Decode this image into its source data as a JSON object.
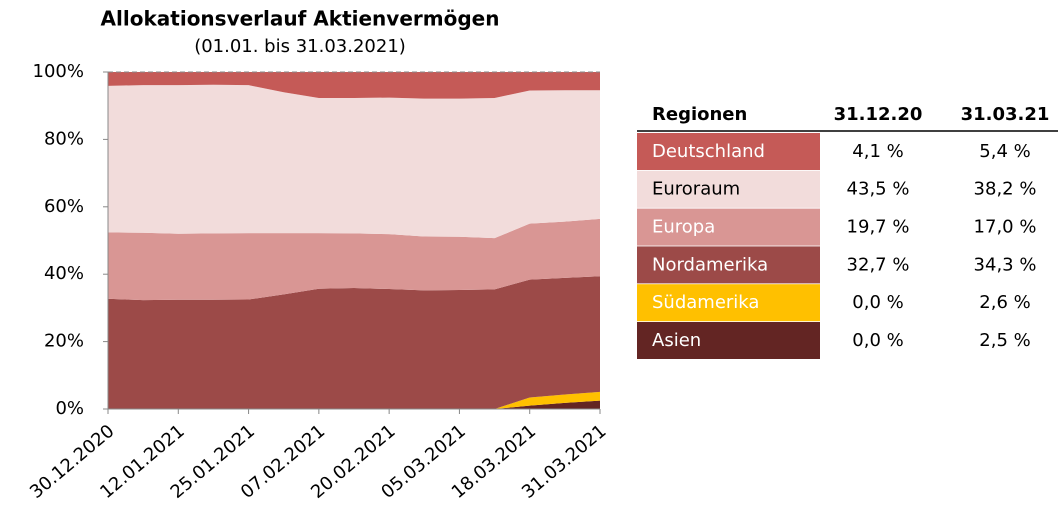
{
  "chart_data": {
    "type": "stacked_area",
    "title": "Allokationsverlauf Aktienvermögen",
    "subtitle": "(01.01. bis 31.03.2021)",
    "categories": [
      "30.12.2020",
      null,
      "12.01.2021",
      null,
      "25.01.2021",
      null,
      "07.02.2021",
      null,
      "20.02.2021",
      null,
      "05.03.2021",
      null,
      "18.03.2021",
      null,
      "31.03.2021"
    ],
    "series": [
      {
        "name": "Asien",
        "color": "#632523",
        "values": [
          0,
          0,
          0,
          0,
          0,
          0,
          0,
          0,
          0,
          0,
          0,
          0,
          1.0,
          1.8,
          2.5
        ]
      },
      {
        "name": "Südamerika",
        "color": "#ffc000",
        "values": [
          0,
          0,
          0,
          0,
          0,
          0,
          0,
          0,
          0,
          0,
          0,
          0,
          2.4,
          2.5,
          2.6
        ]
      },
      {
        "name": "Nordamerika",
        "color": "#9c4a48",
        "values": [
          32.7,
          32.3,
          32.4,
          32.4,
          32.5,
          34.0,
          35.7,
          35.9,
          35.6,
          35.2,
          35.3,
          35.5,
          35.0,
          34.6,
          34.3
        ]
      },
      {
        "name": "Europa",
        "color": "#d99694",
        "values": [
          19.7,
          20.0,
          19.6,
          19.7,
          19.7,
          18.2,
          16.5,
          16.2,
          16.3,
          16.0,
          15.8,
          15.2,
          16.6,
          16.7,
          17.0
        ]
      },
      {
        "name": "Euroraum",
        "color": "#f2dcdb",
        "values": [
          43.5,
          43.8,
          44.1,
          44.1,
          43.9,
          41.8,
          40.1,
          40.2,
          40.5,
          40.9,
          41.0,
          41.6,
          39.5,
          39.0,
          38.2
        ]
      },
      {
        "name": "Deutschland",
        "color": "#c55a57",
        "values": [
          4.1,
          3.9,
          3.9,
          3.8,
          3.9,
          6.0,
          7.7,
          7.7,
          7.6,
          7.9,
          7.9,
          7.7,
          5.5,
          5.4,
          5.4
        ]
      }
    ],
    "ylim": [
      0,
      100
    ],
    "yticks": [
      {
        "value": 0,
        "label": "0%"
      },
      {
        "value": 20,
        "label": "20%"
      },
      {
        "value": 40,
        "label": "40%"
      },
      {
        "value": 60,
        "label": "60%"
      },
      {
        "value": 80,
        "label": "80%"
      },
      {
        "value": 100,
        "label": "100%"
      }
    ]
  },
  "table": {
    "header": [
      "Regionen",
      "31.12.20",
      "31.03.21"
    ],
    "rows": [
      [
        "Deutschland",
        "4,1 %",
        "5,4 %"
      ],
      [
        "Euroraum",
        "43,5 %",
        "38,2 %"
      ],
      [
        "Europa",
        "19,7 %",
        "17,0 %"
      ],
      [
        "Nordamerika",
        "32,7 %",
        "34,3 %"
      ],
      [
        "Südamerika",
        "0,0 %",
        "2,6 %"
      ],
      [
        "Asien",
        "0,0 %",
        "2,5 %"
      ]
    ]
  }
}
